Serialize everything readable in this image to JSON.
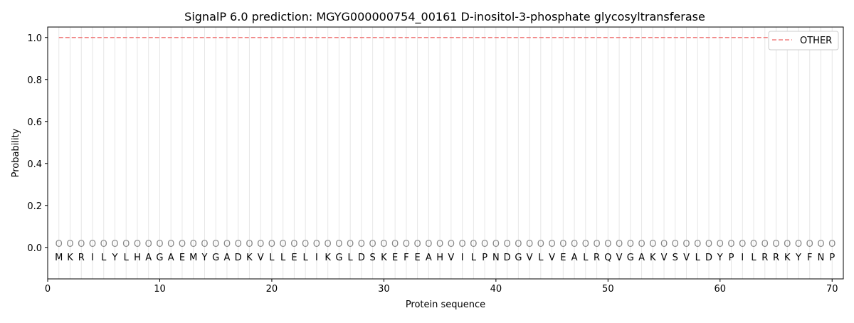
{
  "chart_data": {
    "type": "line",
    "title": "SignalP 6.0 prediction: MGYG000000754_00161 D-inositol-3-phosphate glycosyltransferase",
    "xlabel": "Protein sequence",
    "ylabel": "Probability",
    "xlim": [
      0,
      71
    ],
    "ylim": [
      -0.15,
      1.05
    ],
    "xticks": [
      0,
      10,
      20,
      30,
      40,
      50,
      60,
      70
    ],
    "yticks": [
      0.0,
      0.2,
      0.4,
      0.6,
      0.8,
      1.0
    ],
    "ytick_labels": [
      "0.0",
      "0.2",
      "0.4",
      "0.6",
      "0.8",
      "1.0"
    ],
    "grid": "vertical lines at each residue",
    "legend_position": "top-right",
    "sequence": [
      "M",
      "K",
      "R",
      "I",
      "L",
      "Y",
      "L",
      "H",
      "A",
      "G",
      "A",
      "E",
      "M",
      "Y",
      "G",
      "A",
      "D",
      "K",
      "V",
      "L",
      "L",
      "E",
      "L",
      "I",
      "K",
      "G",
      "L",
      "D",
      "S",
      "K",
      "E",
      "F",
      "E",
      "A",
      "H",
      "V",
      "I",
      "L",
      "P",
      "N",
      "D",
      "G",
      "V",
      "L",
      "V",
      "E",
      "A",
      "L",
      "R",
      "Q",
      "V",
      "G",
      "A",
      "K",
      "V",
      "S",
      "V",
      "L",
      "D",
      "Y",
      "P",
      "I",
      "L",
      "R",
      "R",
      "K",
      "Y",
      "F",
      "N",
      "P"
    ],
    "label_marker": "O",
    "series": [
      {
        "name": "OTHER",
        "color": "#f08080",
        "style": "dashed",
        "x_start": 1,
        "x_end": 70,
        "value": 1.0
      }
    ]
  }
}
